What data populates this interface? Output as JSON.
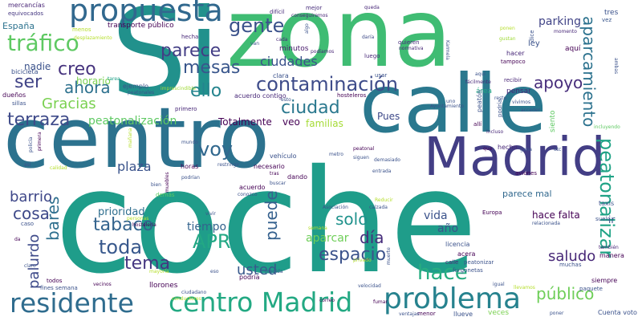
{
  "background": "#ffffff",
  "words": [
    {
      "text": "coche",
      "color": "#1f9d8a"
    },
    {
      "text": "Si",
      "color": "#21918c"
    },
    {
      "text": "zona",
      "color": "#3fbc73"
    },
    {
      "text": "calle",
      "color": "#2a788e"
    },
    {
      "text": "centro",
      "color": "#2c728e"
    },
    {
      "text": "Madrid",
      "color": "#433e85"
    },
    {
      "text": "propuesta",
      "color": "#31688e"
    },
    {
      "text": "problema",
      "color": "#26828e"
    },
    {
      "text": "residente",
      "color": "#2f6c8e"
    },
    {
      "text": "centro Madrid",
      "color": "#23a983"
    },
    {
      "text": "contaminación",
      "color": "#3e4c8a"
    },
    {
      "text": "tráfico",
      "color": "#5ec962"
    },
    {
      "text": "gente",
      "color": "#3b528b"
    },
    {
      "text": "parece",
      "color": "#433e85"
    },
    {
      "text": "mesas",
      "color": "#39568c"
    },
    {
      "text": "ello",
      "color": "#25848e"
    },
    {
      "text": "creo",
      "color": "#46337e"
    },
    {
      "text": "ahora",
      "color": "#2d718e"
    },
    {
      "text": "ser",
      "color": "#414487"
    },
    {
      "text": "apoyo",
      "color": "#472d7b"
    },
    {
      "text": "aparcamiento",
      "color": "#2c728e"
    },
    {
      "text": "peatonalizar",
      "color": "#20a386"
    },
    {
      "text": "terraza",
      "color": "#3e4a89"
    },
    {
      "text": "Gracias",
      "color": "#7ad151"
    },
    {
      "text": "ciudad",
      "color": "#2a788e"
    },
    {
      "text": "ciudades",
      "color": "#3b528b"
    },
    {
      "text": "voy",
      "color": "#31688e"
    },
    {
      "text": "tabaco",
      "color": "#33638d"
    },
    {
      "text": "toda",
      "color": "#38588c"
    },
    {
      "text": "plaza",
      "color": "#3a538b"
    },
    {
      "text": "tema",
      "color": "#453781"
    },
    {
      "text": "APR",
      "color": "#22a884"
    },
    {
      "text": "espacio",
      "color": "#3b528b"
    },
    {
      "text": "hace",
      "color": "#27ad81"
    },
    {
      "text": "bares",
      "color": "#2e6f8e"
    },
    {
      "text": "barrio",
      "color": "#3f4889"
    },
    {
      "text": "cosa",
      "color": "#3e4989"
    },
    {
      "text": "solo",
      "color": "#20928c"
    },
    {
      "text": "día",
      "color": "#472e7c"
    },
    {
      "text": "palurdo",
      "color": "#3e4a89"
    },
    {
      "text": "usted",
      "color": "#38598c"
    },
    {
      "text": "saludo",
      "color": "#482878"
    },
    {
      "text": "público",
      "color": "#6ece58"
    },
    {
      "text": "puede",
      "color": "#34608d"
    },
    {
      "text": "prioridad",
      "color": "#2e6e8e"
    },
    {
      "text": "tiempo",
      "color": "#33638d"
    },
    {
      "text": "aparcar",
      "color": "#6ece58"
    },
    {
      "text": "vida",
      "color": "#3b528b"
    },
    {
      "text": "año",
      "color": "#3b528b"
    },
    {
      "text": "hace falta",
      "color": "#440154"
    },
    {
      "text": "parece mal",
      "color": "#31688e"
    },
    {
      "text": "parking",
      "color": "#414487"
    },
    {
      "text": "peatonalización",
      "color": "#5ec962"
    },
    {
      "text": "Totalmente",
      "color": "#440154"
    },
    {
      "text": "veo",
      "color": "#440154"
    },
    {
      "text": "familias",
      "color": "#a5db36"
    },
    {
      "text": "Pues",
      "color": "#3e4989"
    },
    {
      "text": "horario",
      "color": "#7ad151"
    },
    {
      "text": "nadie",
      "color": "#3b528b"
    },
    {
      "text": "España",
      "color": "#2c728e"
    },
    {
      "text": "mercancías",
      "color": "#482576"
    },
    {
      "text": "equivocados",
      "color": "#453781"
    },
    {
      "text": "transporte público",
      "color": "#440154"
    },
    {
      "text": "menos",
      "color": "#b5de2b"
    },
    {
      "text": "desplazamiento",
      "color": "#b5de2b"
    },
    {
      "text": "hecha",
      "color": "#482878"
    },
    {
      "text": "difícil",
      "color": "#472d7b"
    },
    {
      "text": "mejor",
      "color": "#472d7b"
    },
    {
      "text": "conseguiremos",
      "color": "#482576"
    },
    {
      "text": "queda",
      "color": "#482878"
    },
    {
      "text": "momento",
      "color": "#482878"
    },
    {
      "text": "tres",
      "color": "#3b528b"
    },
    {
      "text": "vez",
      "color": "#39568c"
    },
    {
      "text": "ponen",
      "color": "#b5de2b"
    },
    {
      "text": "gustan",
      "color": "#a0da39"
    },
    {
      "text": "dice",
      "color": "#3b528b"
    },
    {
      "text": "quieren",
      "color": "#472d7b"
    },
    {
      "text": "normativa",
      "color": "#482878"
    },
    {
      "text": "daría",
      "color": "#3e4a89"
    },
    {
      "text": "ley",
      "color": "#3b528b"
    },
    {
      "text": "aquí",
      "color": "#440154"
    },
    {
      "text": "hacer",
      "color": "#482878"
    },
    {
      "text": "tampoco",
      "color": "#440154"
    },
    {
      "text": "minutos",
      "color": "#481a6c"
    },
    {
      "text": "cada",
      "color": "#482878"
    },
    {
      "text": "algo",
      "color": "#3b528b"
    },
    {
      "text": "podíamos",
      "color": "#482576"
    },
    {
      "text": "clara",
      "color": "#3b528b"
    },
    {
      "text": "usar",
      "color": "#3b528b"
    },
    {
      "text": "luego",
      "color": "#482878"
    },
    {
      "text": "Karmela",
      "color": "#3b528b"
    },
    {
      "text": "recibir",
      "color": "#482576"
    },
    {
      "text": "pensar",
      "color": "#482878"
    },
    {
      "text": "vivimos",
      "color": "#3b528b"
    },
    {
      "text": "acceder",
      "color": "#3b528b"
    },
    {
      "text": "área",
      "color": "#22a884"
    },
    {
      "text": "peatón",
      "color": "#3b528b"
    },
    {
      "text": "siento",
      "color": "#5ec962"
    },
    {
      "text": "mundo",
      "color": "#3b528b"
    },
    {
      "text": "incluyendo",
      "color": "#5ec962"
    },
    {
      "text": "bicicleta",
      "color": "#3b528b"
    },
    {
      "text": "dueños",
      "color": "#440154"
    },
    {
      "text": "sillas",
      "color": "#3b528b"
    },
    {
      "text": "tarea",
      "color": "#1fa187"
    },
    {
      "text": "ejemplo",
      "color": "#3b528b"
    },
    {
      "text": "imprescindible",
      "color": "#a0da39"
    },
    {
      "text": "peatonales",
      "color": "#3b528b"
    },
    {
      "text": "primero",
      "color": "#482878"
    },
    {
      "text": "acuerdo contigo",
      "color": "#482878"
    },
    {
      "text": "hosteleros",
      "color": "#440154"
    },
    {
      "text": "Ayuntamiento",
      "color": "#3b528b"
    },
    {
      "text": "allí",
      "color": "#440154"
    },
    {
      "text": "podría",
      "color": "#3b528b"
    },
    {
      "text": "Incluso",
      "color": "#482878"
    },
    {
      "text": "hecho",
      "color": "#482878"
    },
    {
      "text": "gana",
      "color": "#3b528b"
    },
    {
      "text": "etc",
      "color": "#3b528b"
    },
    {
      "text": "vehículo",
      "color": "#3b528b"
    },
    {
      "text": "necesario",
      "color": "#440154"
    },
    {
      "text": "dando",
      "color": "#440154"
    },
    {
      "text": "horas",
      "color": "#440154"
    },
    {
      "text": "restringir",
      "color": "#3b528b"
    },
    {
      "text": "peatonal",
      "color": "#440154"
    },
    {
      "text": "siguen",
      "color": "#3b528b"
    },
    {
      "text": "demasiado",
      "color": "#3b528b"
    },
    {
      "text": "entrada",
      "color": "#3b528b"
    },
    {
      "text": "aviones",
      "color": "#440154"
    },
    {
      "text": "taxis",
      "color": "#3b528b"
    },
    {
      "text": "suelo",
      "color": "#3b528b"
    },
    {
      "text": "buscar",
      "color": "#3b528b"
    },
    {
      "text": "acuerdo",
      "color": "#440154"
    },
    {
      "text": "conozco",
      "color": "#3b528b"
    },
    {
      "text": "Asociación",
      "color": "#3b528b"
    },
    {
      "text": "Reducir",
      "color": "#b5de2b"
    },
    {
      "text": "calzada",
      "color": "#3b528b"
    },
    {
      "text": "Europa",
      "color": "#440154"
    },
    {
      "text": "relacionada",
      "color": "#3b528b"
    },
    {
      "text": "también",
      "color": "#482878"
    },
    {
      "text": "manera",
      "color": "#440154"
    },
    {
      "text": "siempre",
      "color": "#440154"
    },
    {
      "text": "paquete",
      "color": "#3b528b"
    },
    {
      "text": "muchas",
      "color": "#3b528b"
    },
    {
      "text": "licencia",
      "color": "#3b528b"
    },
    {
      "text": "acera",
      "color": "#440154"
    },
    {
      "text": "calle",
      "color": "#482878"
    },
    {
      "text": "peatonizar",
      "color": "#3b528b"
    },
    {
      "text": "furgonetas",
      "color": "#3b528b"
    },
    {
      "text": "velocidad",
      "color": "#3b528b"
    },
    {
      "text": "igual",
      "color": "#3b528b"
    },
    {
      "text": "llevamos",
      "color": "#b5de2b"
    },
    {
      "text": "veces",
      "color": "#7ad151"
    },
    {
      "text": "Cuenta voto",
      "color": "#3b528b"
    },
    {
      "text": "poner",
      "color": "#3b528b"
    },
    {
      "text": "menor",
      "color": "#440154"
    },
    {
      "text": "llueve",
      "color": "#3b528b"
    },
    {
      "text": "fumar",
      "color": "#440154"
    },
    {
      "text": "correo",
      "color": "#440154"
    },
    {
      "text": "privado",
      "color": "#b5de2b"
    },
    {
      "text": "ventajas",
      "color": "#3b528b"
    },
    {
      "text": "muerte",
      "color": "#3b528b"
    },
    {
      "text": "medida",
      "color": "#3b528b"
    },
    {
      "text": "eso",
      "color": "#3b528b"
    },
    {
      "text": "podría",
      "color": "#440154"
    },
    {
      "text": "llorones",
      "color": "#440154"
    },
    {
      "text": "ciudadano",
      "color": "#3b528b"
    },
    {
      "text": "conductores",
      "color": "#b5de2b"
    },
    {
      "text": "vecinos",
      "color": "#440154"
    },
    {
      "text": "mayoría",
      "color": "#b5de2b"
    },
    {
      "text": "fines semana",
      "color": "#3b528b"
    },
    {
      "text": "todos",
      "color": "#440154"
    },
    {
      "text": "claro",
      "color": "#3b528b"
    },
    {
      "text": "caso",
      "color": "#3b528b"
    },
    {
      "text": "da",
      "color": "#440154"
    },
    {
      "text": "personas",
      "color": "#b5de2b"
    },
    {
      "text": "hostelería",
      "color": "#440154"
    },
    {
      "text": "demás",
      "color": "#5ec962"
    },
    {
      "text": "vivir",
      "color": "#3b528b"
    },
    {
      "text": "semana",
      "color": "#b5de2b"
    },
    {
      "text": "bien",
      "color": "#3b528b"
    },
    {
      "text": "muebles",
      "color": "#440154"
    },
    {
      "text": "podrían",
      "color": "#3b528b"
    },
    {
      "text": "mañana",
      "color": "#b5de2b"
    },
    {
      "text": "calidad",
      "color": "#b5de2b"
    },
    {
      "text": "así",
      "color": "#3b528b"
    },
    {
      "text": "policía",
      "color": "#3b528b"
    },
    {
      "text": "primera",
      "color": "#440154"
    },
    {
      "text": "tras",
      "color": "#440154"
    },
    {
      "text": "metro",
      "color": "#3b528b"
    },
    {
      "text": "que",
      "color": "#440154"
    },
    {
      "text": "ir",
      "color": "#3b528b"
    },
    {
      "text": "uno",
      "color": "#3b528b"
    },
    {
      "text": "esto",
      "color": "#3b528b"
    },
    {
      "text": "fácilmente",
      "color": "#482878"
    },
    {
      "text": "resto",
      "color": "#3b528b"
    },
    {
      "text": "aquí",
      "color": "#3b528b"
    },
    {
      "text": "van",
      "color": "#3b528b"
    },
    {
      "text": "ambas",
      "color": "#3b528b"
    }
  ]
}
